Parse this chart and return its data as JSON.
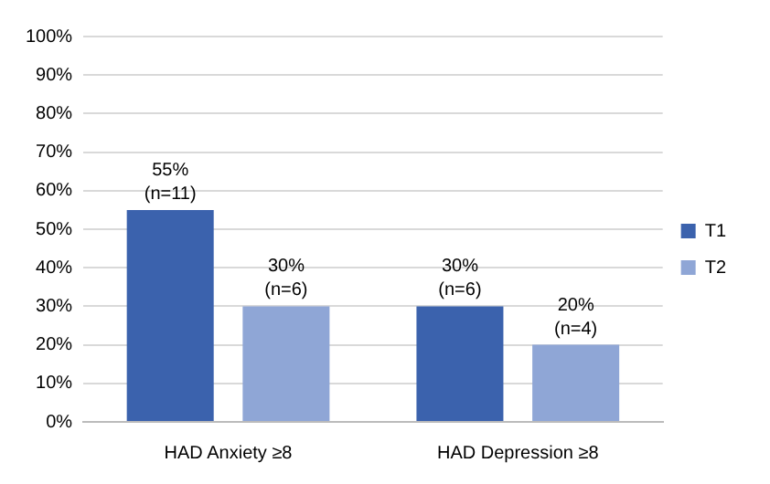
{
  "chart_data": {
    "type": "bar",
    "categories": [
      "HAD Anxiety ≥8",
      "HAD Depression ≥8"
    ],
    "series": [
      {
        "name": "T1",
        "color": "#3b62ad",
        "values": [
          55,
          30
        ],
        "value_labels": [
          "55%\n(n=11)",
          "30%\n(n=6)"
        ]
      },
      {
        "name": "T2",
        "color": "#8fa6d6",
        "values": [
          30,
          20
        ],
        "value_labels": [
          "30%\n(n=6)",
          "20%\n(n=4)"
        ]
      }
    ],
    "ylim": [
      0,
      100
    ],
    "yticks": [
      {
        "value": 0,
        "label": "0%"
      },
      {
        "value": 10,
        "label": "10%"
      },
      {
        "value": 20,
        "label": "20%"
      },
      {
        "value": 30,
        "label": "30%"
      },
      {
        "value": 40,
        "label": "40%"
      },
      {
        "value": 50,
        "label": "50%"
      },
      {
        "value": 60,
        "label": "60%"
      },
      {
        "value": 70,
        "label": "70%"
      },
      {
        "value": 80,
        "label": "80%"
      },
      {
        "value": 90,
        "label": "90%"
      },
      {
        "value": 100,
        "label": "100%"
      }
    ],
    "grid": "y",
    "legend": "right"
  }
}
